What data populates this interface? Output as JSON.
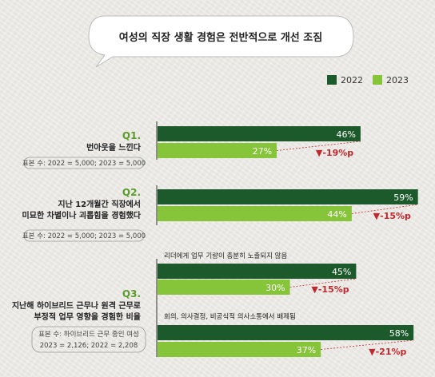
{
  "title": "여성의 직장 생활 경험은 전반적으로 개선 조짐",
  "legend": [
    {
      "label": "2022",
      "color": "#1d5a2b"
    },
    {
      "label": "2023",
      "color": "#86c43a"
    }
  ],
  "questions": [
    {
      "id": "Q1.",
      "lines": [
        "번아웃을 느낀다"
      ],
      "sample_lines": [
        "표본 수: 2022 = 5,000; 2023 = 5,000"
      ]
    },
    {
      "id": "Q2.",
      "lines": [
        "지난 12개월간 직장에서",
        "미묘한 차별이나 괴롭힘을 경험했다"
      ],
      "sample_lines": [
        "표본 수: 2022 = 5,000; 2023 = 5,000"
      ]
    },
    {
      "id": "Q3.",
      "lines": [
        "지난해 하이브리드 근무나 원격 근무로",
        "부정적 업무 영향을 경험한 비율"
      ],
      "sample_lines": [
        "표본 수: 하이브리드 근무 중인 여성",
        "2023 = 2,126; 2022 = 2,208"
      ]
    }
  ],
  "chart_data": {
    "type": "bar",
    "orientation": "horizontal",
    "unit": "%",
    "series": [
      {
        "name": "2022",
        "color": "#1d5a2b"
      },
      {
        "name": "2023",
        "color": "#86c43a"
      }
    ],
    "groups": [
      {
        "question": "Q1.",
        "subtitle": "",
        "value_2022": 46,
        "value_2023": 27,
        "label_2022": "46%",
        "label_2023": "27%",
        "change": "▼-19%p"
      },
      {
        "question": "Q2.",
        "subtitle": "",
        "value_2022": 59,
        "value_2023": 44,
        "label_2022": "59%",
        "label_2023": "44%",
        "change": "▼-15%p"
      },
      {
        "question": "Q3.",
        "subtitle": "리더에게 업무 기량이 충분히 노출되지 않음",
        "value_2022": 45,
        "value_2023": 30,
        "label_2022": "45%",
        "label_2023": "30%",
        "change": "▼-15%p"
      },
      {
        "question": "Q3.",
        "subtitle": "회의, 의사결정, 비공식적 의사소통에서 배제됨",
        "value_2022": 58,
        "value_2023": 37,
        "label_2022": "58%",
        "label_2023": "37%",
        "change": "▼-21%p"
      }
    ]
  }
}
